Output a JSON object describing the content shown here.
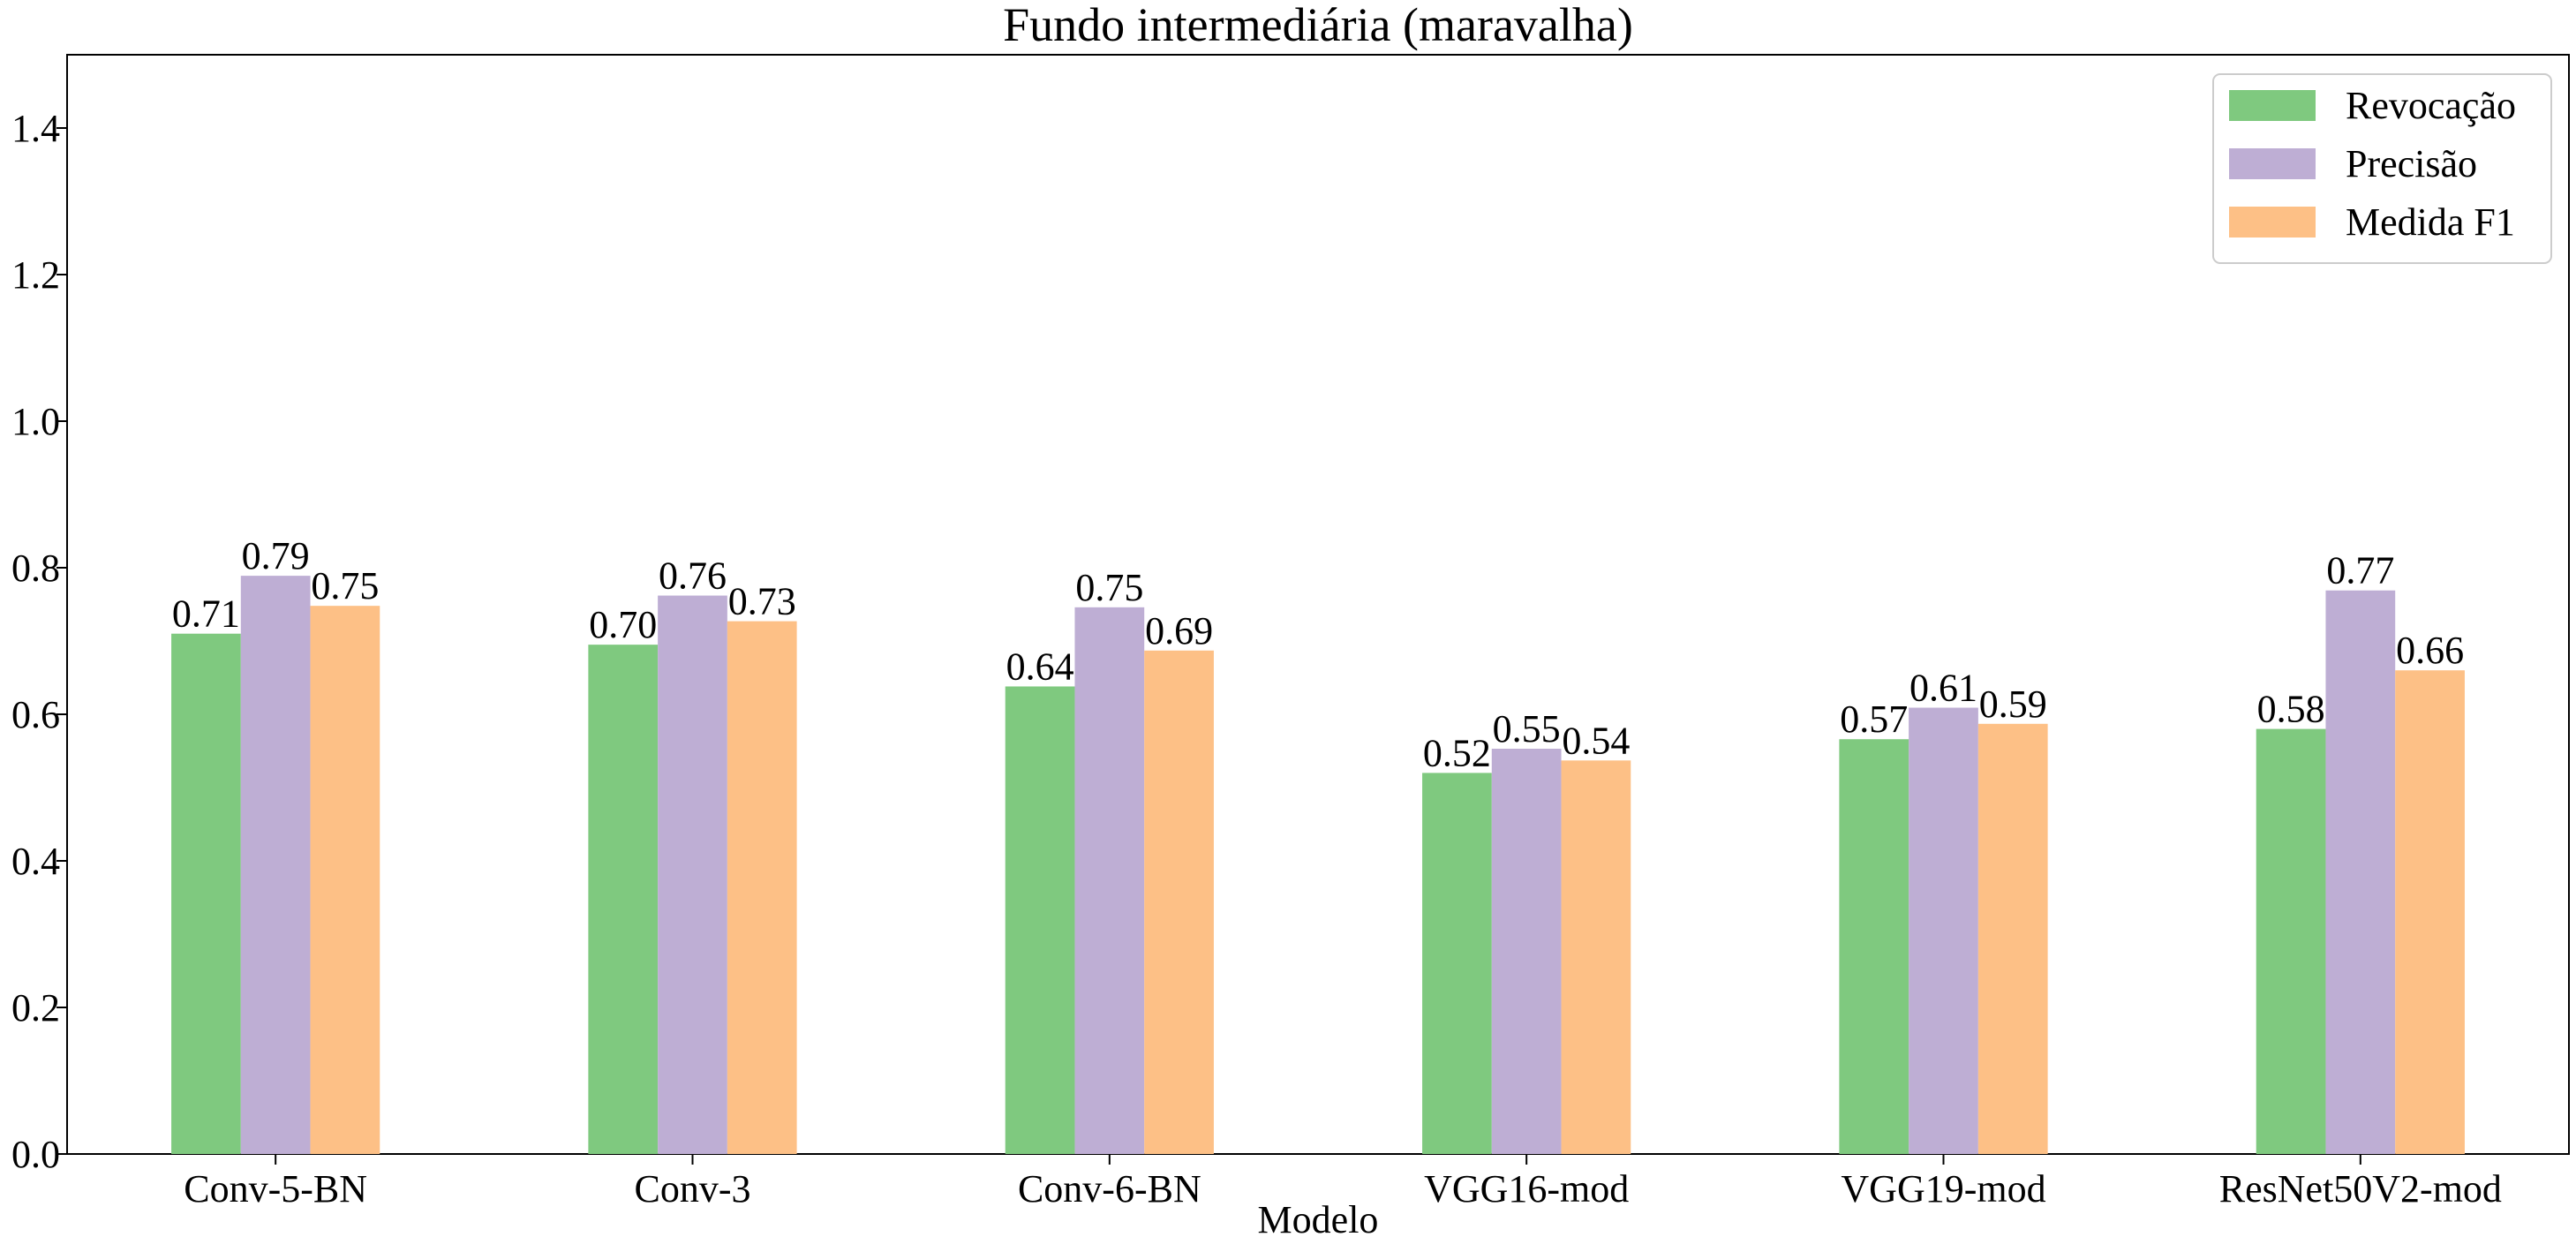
{
  "chart_data": {
    "type": "bar",
    "title": "Fundo intermediária (maravalha)",
    "xlabel": "Modelo",
    "ylabel": "",
    "ylim": [
      0,
      1.5
    ],
    "yticks": [
      "0.0",
      "0.2",
      "0.4",
      "0.6",
      "0.8",
      "1.0",
      "1.2",
      "1.4"
    ],
    "categories": [
      "Conv-5-BN",
      "Conv-3",
      "Conv-6-BN",
      "VGG16-mod",
      "VGG19-mod",
      "ResNet50V2-mod"
    ],
    "series": [
      {
        "name": "Revocação",
        "color": "#7fc97f",
        "values": [
          0.71,
          0.695,
          0.638,
          0.52,
          0.566,
          0.58
        ],
        "labels": [
          "0.71",
          "0.70",
          "0.64",
          "0.52",
          "0.57",
          "0.58"
        ]
      },
      {
        "name": "Precisão",
        "color": "#beaed4",
        "values": [
          0.789,
          0.762,
          0.746,
          0.553,
          0.609,
          0.769
        ],
        "labels": [
          "0.79",
          "0.76",
          "0.75",
          "0.55",
          "0.61",
          "0.77"
        ]
      },
      {
        "name": "Medida F1",
        "color": "#fdc086",
        "values": [
          0.748,
          0.727,
          0.687,
          0.537,
          0.587,
          0.66
        ],
        "labels": [
          "0.75",
          "0.73",
          "0.69",
          "0.54",
          "0.59",
          "0.66"
        ]
      }
    ],
    "grid": false,
    "legend_position": "top-right"
  }
}
